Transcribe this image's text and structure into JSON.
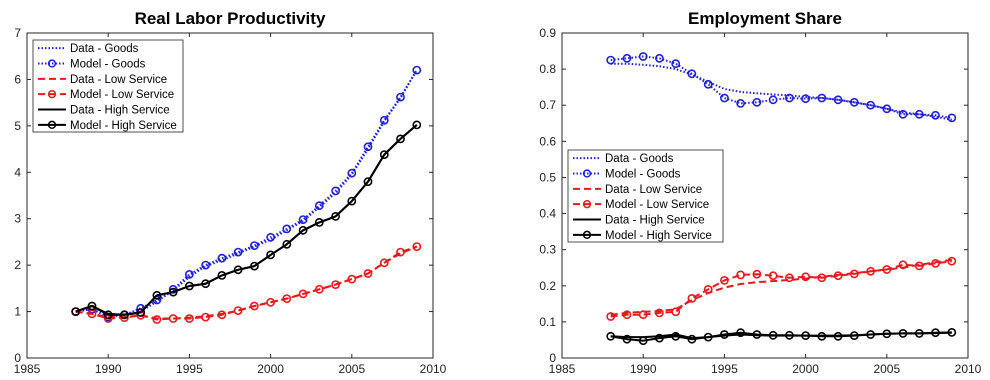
{
  "chart_data": [
    {
      "type": "line",
      "title": "Real Labor Productivity",
      "xlabel": "",
      "ylabel": "",
      "xlim": [
        1985,
        2010
      ],
      "ylim": [
        0,
        7
      ],
      "xticks": [
        1985,
        1990,
        1995,
        2000,
        2005,
        2010
      ],
      "yticks": [
        0,
        1,
        2,
        3,
        4,
        5,
        6,
        7
      ],
      "legend_position": "top-left",
      "grid": false,
      "series": [
        {
          "name": "Data - Goods",
          "color": "#1f1fd6",
          "style": "dotted",
          "marker": "none",
          "x": [
            1988,
            1989,
            1990,
            1991,
            1992,
            1993,
            1994,
            1995,
            1996,
            1997,
            1998,
            1999,
            2000,
            2001,
            2002,
            2003,
            2004,
            2005,
            2006,
            2007,
            2008,
            2009
          ],
          "y": [
            1.0,
            1.05,
            0.92,
            0.93,
            1.0,
            1.22,
            1.45,
            1.75,
            1.98,
            2.1,
            2.25,
            2.4,
            2.55,
            2.75,
            2.95,
            3.25,
            3.55,
            3.95,
            4.5,
            5.1,
            5.6,
            6.2
          ]
        },
        {
          "name": "Model - Goods",
          "color": "#1f1fd6",
          "style": "dotted",
          "marker": "circle",
          "x": [
            1988,
            1989,
            1990,
            1991,
            1992,
            1993,
            1994,
            1995,
            1996,
            1997,
            1998,
            1999,
            2000,
            2001,
            2002,
            2003,
            2004,
            2005,
            2006,
            2007,
            2008,
            2009
          ],
          "y": [
            1.0,
            1.05,
            0.88,
            0.93,
            1.07,
            1.25,
            1.48,
            1.8,
            2.0,
            2.15,
            2.28,
            2.42,
            2.6,
            2.78,
            2.98,
            3.28,
            3.6,
            3.98,
            4.55,
            5.12,
            5.62,
            6.2
          ]
        },
        {
          "name": "Data - Low Service",
          "color": "#e8191e",
          "style": "dashed",
          "marker": "none",
          "x": [
            1988,
            1989,
            1990,
            1991,
            1992,
            1993,
            1994,
            1995,
            1996,
            1997,
            1998,
            1999,
            2000,
            2001,
            2002,
            2003,
            2004,
            2005,
            2006,
            2007,
            2008,
            2009
          ],
          "y": [
            1.0,
            0.95,
            0.88,
            0.88,
            0.92,
            0.85,
            0.85,
            0.87,
            0.9,
            0.95,
            1.02,
            1.12,
            1.2,
            1.28,
            1.38,
            1.48,
            1.58,
            1.7,
            1.82,
            2.05,
            2.25,
            2.4
          ]
        },
        {
          "name": "Model - Low Service",
          "color": "#e8191e",
          "style": "dashed",
          "marker": "circle",
          "x": [
            1988,
            1989,
            1990,
            1991,
            1992,
            1993,
            1994,
            1995,
            1996,
            1997,
            1998,
            1999,
            2000,
            2001,
            2002,
            2003,
            2004,
            2005,
            2006,
            2007,
            2008,
            2009
          ],
          "y": [
            1.0,
            0.95,
            0.85,
            0.87,
            0.92,
            0.83,
            0.85,
            0.85,
            0.88,
            0.93,
            1.02,
            1.12,
            1.2,
            1.28,
            1.38,
            1.48,
            1.58,
            1.7,
            1.82,
            2.05,
            2.28,
            2.4
          ]
        },
        {
          "name": "Data - High Service",
          "color": "#000000",
          "style": "solid",
          "marker": "none",
          "x": [
            1988,
            1989,
            1990,
            1991,
            1992,
            1993,
            1994,
            1995,
            1996,
            1997,
            1998,
            1999,
            2000,
            2001,
            2002,
            2003,
            2004,
            2005,
            2006,
            2007,
            2008,
            2009
          ],
          "y": [
            1.0,
            1.12,
            0.95,
            0.93,
            0.98,
            1.35,
            1.42,
            1.55,
            1.6,
            1.78,
            1.9,
            1.98,
            2.22,
            2.45,
            2.75,
            2.92,
            3.05,
            3.38,
            3.8,
            4.38,
            4.72,
            5.02
          ]
        },
        {
          "name": "Model - High Service",
          "color": "#000000",
          "style": "solid",
          "marker": "circle",
          "x": [
            1988,
            1989,
            1990,
            1991,
            1992,
            1993,
            1994,
            1995,
            1996,
            1997,
            1998,
            1999,
            2000,
            2001,
            2002,
            2003,
            2004,
            2005,
            2006,
            2007,
            2008,
            2009
          ],
          "y": [
            1.0,
            1.12,
            0.93,
            0.93,
            0.98,
            1.35,
            1.42,
            1.55,
            1.6,
            1.78,
            1.9,
            1.98,
            2.22,
            2.45,
            2.75,
            2.92,
            3.05,
            3.38,
            3.8,
            4.38,
            4.72,
            5.02
          ]
        }
      ]
    },
    {
      "type": "line",
      "title": "Employment Share",
      "xlabel": "",
      "ylabel": "",
      "xlim": [
        1985,
        2010
      ],
      "ylim": [
        0,
        0.9
      ],
      "xticks": [
        1985,
        1990,
        1995,
        2000,
        2005,
        2010
      ],
      "yticks": [
        0,
        0.1,
        0.2,
        0.3,
        0.4,
        0.5,
        0.6,
        0.7,
        0.8,
        0.9
      ],
      "legend_position": "center-left",
      "grid": false,
      "series": [
        {
          "name": "Data - Goods",
          "color": "#1f1fd6",
          "style": "dotted",
          "marker": "none",
          "x": [
            1988,
            1989,
            1990,
            1991,
            1992,
            1993,
            1994,
            1995,
            1996,
            1997,
            1998,
            1999,
            2000,
            2001,
            2002,
            2003,
            2004,
            2005,
            2006,
            2007,
            2008,
            2009
          ],
          "y": [
            0.815,
            0.815,
            0.812,
            0.808,
            0.8,
            0.785,
            0.765,
            0.745,
            0.737,
            0.733,
            0.73,
            0.727,
            0.723,
            0.72,
            0.715,
            0.708,
            0.7,
            0.69,
            0.68,
            0.675,
            0.668,
            0.66
          ]
        },
        {
          "name": "Model - Goods",
          "color": "#1f1fd6",
          "style": "dotted",
          "marker": "circle",
          "x": [
            1988,
            1989,
            1990,
            1991,
            1992,
            1993,
            1994,
            1995,
            1996,
            1997,
            1998,
            1999,
            2000,
            2001,
            2002,
            2003,
            2004,
            2005,
            2006,
            2007,
            2008,
            2009
          ],
          "y": [
            0.825,
            0.83,
            0.835,
            0.83,
            0.815,
            0.787,
            0.758,
            0.72,
            0.705,
            0.708,
            0.715,
            0.72,
            0.718,
            0.72,
            0.715,
            0.708,
            0.7,
            0.69,
            0.675,
            0.675,
            0.672,
            0.665
          ]
        },
        {
          "name": "Data - Low Service",
          "color": "#e8191e",
          "style": "dashed",
          "marker": "none",
          "x": [
            1988,
            1989,
            1990,
            1991,
            1992,
            1993,
            1994,
            1995,
            1996,
            1997,
            1998,
            1999,
            2000,
            2001,
            2002,
            2003,
            2004,
            2005,
            2006,
            2007,
            2008,
            2009
          ],
          "y": [
            0.12,
            0.125,
            0.128,
            0.13,
            0.135,
            0.16,
            0.18,
            0.195,
            0.205,
            0.21,
            0.213,
            0.216,
            0.22,
            0.225,
            0.23,
            0.235,
            0.24,
            0.245,
            0.25,
            0.258,
            0.265,
            0.272
          ]
        },
        {
          "name": "Model - Low Service",
          "color": "#e8191e",
          "style": "dashed",
          "marker": "circle",
          "x": [
            1988,
            1989,
            1990,
            1991,
            1992,
            1993,
            1994,
            1995,
            1996,
            1997,
            1998,
            1999,
            2000,
            2001,
            2002,
            2003,
            2004,
            2005,
            2006,
            2007,
            2008,
            2009
          ],
          "y": [
            0.115,
            0.12,
            0.12,
            0.125,
            0.128,
            0.165,
            0.19,
            0.215,
            0.23,
            0.232,
            0.228,
            0.222,
            0.225,
            0.222,
            0.228,
            0.233,
            0.24,
            0.245,
            0.258,
            0.255,
            0.262,
            0.268
          ]
        },
        {
          "name": "Data - High Service",
          "color": "#000000",
          "style": "solid",
          "marker": "none",
          "x": [
            1988,
            1989,
            1990,
            1991,
            1992,
            1993,
            1994,
            1995,
            1996,
            1997,
            1998,
            1999,
            2000,
            2001,
            2002,
            2003,
            2004,
            2005,
            2006,
            2007,
            2008,
            2009
          ],
          "y": [
            0.06,
            0.058,
            0.058,
            0.06,
            0.065,
            0.055,
            0.058,
            0.062,
            0.065,
            0.063,
            0.062,
            0.062,
            0.062,
            0.062,
            0.062,
            0.063,
            0.065,
            0.067,
            0.068,
            0.068,
            0.069,
            0.07
          ]
        },
        {
          "name": "Model - High Service",
          "color": "#000000",
          "style": "solid",
          "marker": "circle",
          "x": [
            1988,
            1989,
            1990,
            1991,
            1992,
            1993,
            1994,
            1995,
            1996,
            1997,
            1998,
            1999,
            2000,
            2001,
            2002,
            2003,
            2004,
            2005,
            2006,
            2007,
            2008,
            2009
          ],
          "y": [
            0.06,
            0.052,
            0.048,
            0.055,
            0.06,
            0.052,
            0.058,
            0.065,
            0.07,
            0.065,
            0.063,
            0.063,
            0.062,
            0.06,
            0.06,
            0.062,
            0.065,
            0.067,
            0.068,
            0.068,
            0.07,
            0.071
          ]
        }
      ]
    }
  ]
}
